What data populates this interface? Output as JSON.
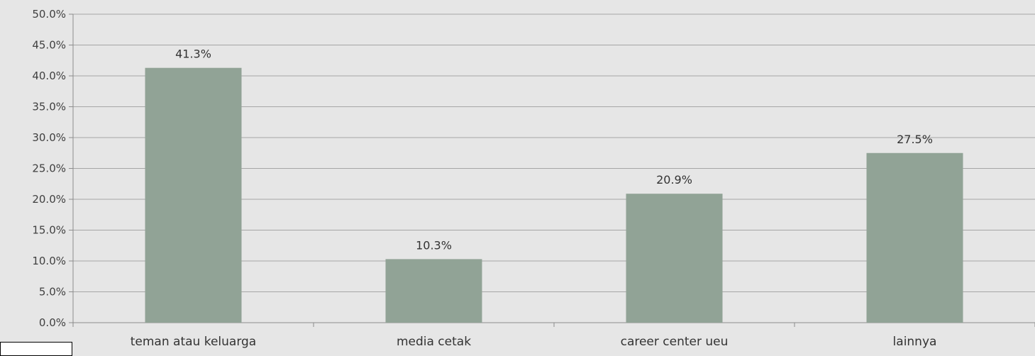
{
  "chart_data": {
    "type": "bar",
    "categories": [
      "teman atau keluarga",
      "media cetak",
      "career center ueu",
      "lainnya"
    ],
    "values": [
      41.3,
      10.3,
      20.9,
      27.5
    ],
    "value_labels": [
      "41.3%",
      "10.3%",
      "20.9%",
      "27.5%"
    ],
    "title": "",
    "xlabel": "",
    "ylabel": "",
    "ylim": [
      0,
      50
    ],
    "y_ticks": [
      0,
      5,
      10,
      15,
      20,
      25,
      30,
      35,
      40,
      45,
      50
    ],
    "y_tick_labels": [
      "0.0%",
      "5.0%",
      "10.0%",
      "15.0%",
      "20.0%",
      "25.0%",
      "30.0%",
      "35.0%",
      "40.0%",
      "45.0%",
      "50.0%"
    ],
    "grid": true,
    "legend": "none",
    "colors": {
      "bar": "#91a396",
      "grid": "#a6a6a6",
      "axis": "#8c8c8c",
      "background": "#e6e6e6"
    }
  }
}
